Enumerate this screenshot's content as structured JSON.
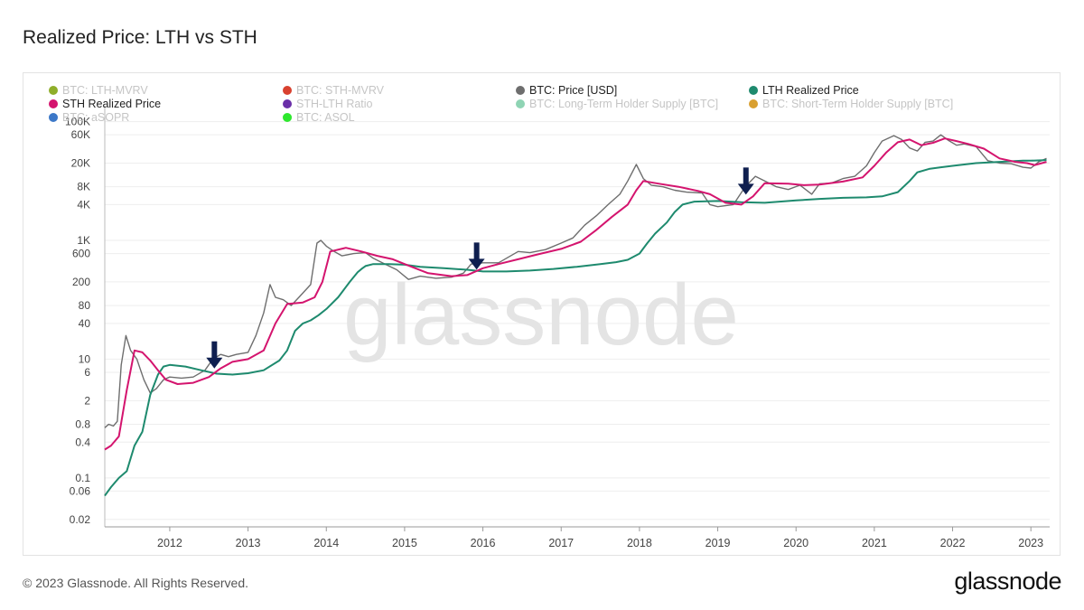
{
  "page": {
    "title": "Realized Price: LTH vs STH",
    "footer": "© 2023 Glassnode. All Rights Reserved.",
    "brand": "glassnode",
    "watermark": "glassnode"
  },
  "legend": [
    {
      "label": "BTC: LTH-MVRV",
      "color": "#8fae2a",
      "active": false
    },
    {
      "label": "BTC: STH-MVRV",
      "color": "#d9412f",
      "active": false
    },
    {
      "label": "BTC: Price [USD]",
      "color": "#6e6e6e",
      "active": true
    },
    {
      "label": "LTH Realized Price",
      "color": "#1e8a6e",
      "active": true
    },
    {
      "label": "STH Realized Price",
      "color": "#d4146e",
      "active": true
    },
    {
      "label": "STH-LTH Ratio",
      "color": "#6a2fa8",
      "active": false
    },
    {
      "label": "BTC: Long-Term Holder Supply [BTC]",
      "color": "#8fd4b4",
      "active": false
    },
    {
      "label": "BTC: Short-Term Holder Supply [BTC]",
      "color": "#d9a030",
      "active": false
    },
    {
      "label": "BTC: aSOPR",
      "color": "#3c78c8",
      "active": false
    },
    {
      "label": "BTC: ASOL",
      "color": "#2ee82e",
      "active": false
    }
  ],
  "chart_data": {
    "type": "line",
    "title": "Realized Price: LTH vs STH",
    "yscale": "log",
    "ylim": [
      0.015,
      150000
    ],
    "xlim": [
      2011.17,
      2023.24
    ],
    "x_ticks": [
      2012,
      2013,
      2014,
      2015,
      2016,
      2017,
      2018,
      2019,
      2020,
      2021,
      2022,
      2023
    ],
    "x_tick_labels": [
      "2012",
      "2013",
      "2014",
      "2015",
      "2016",
      "2017",
      "2018",
      "2019",
      "2020",
      "2021",
      "2022",
      "2023"
    ],
    "y_ticks": [
      0.02,
      0.06,
      0.1,
      0.4,
      0.8,
      2,
      6,
      10,
      40,
      80,
      200,
      600,
      1000,
      4000,
      8000,
      20000,
      60000,
      100000
    ],
    "y_tick_labels": [
      "0.02",
      "0.06",
      "0.1",
      "0.4",
      "0.8",
      "2",
      "6",
      "10",
      "40",
      "80",
      "200",
      "600",
      "1K",
      "4K",
      "8K",
      "20K",
      "60K",
      "100K"
    ],
    "series": [
      {
        "name": "BTC: Price [USD]",
        "color": "#6e6e6e",
        "x": [
          2011.17,
          2011.22,
          2011.28,
          2011.33,
          2011.38,
          2011.44,
          2011.5,
          2011.58,
          2011.67,
          2011.75,
          2011.83,
          2011.92,
          2012.0,
          2012.15,
          2012.3,
          2012.45,
          2012.55,
          2012.65,
          2012.75,
          2012.85,
          2013.0,
          2013.1,
          2013.2,
          2013.28,
          2013.35,
          2013.45,
          2013.55,
          2013.65,
          2013.8,
          2013.88,
          2013.93,
          2014.0,
          2014.1,
          2014.2,
          2014.35,
          2014.5,
          2014.6,
          2014.75,
          2014.9,
          2015.05,
          2015.2,
          2015.4,
          2015.6,
          2015.75,
          2015.85,
          2016.0,
          2016.2,
          2016.45,
          2016.6,
          2016.8,
          2017.0,
          2017.15,
          2017.3,
          2017.45,
          2017.6,
          2017.75,
          2017.85,
          2017.96,
          2018.05,
          2018.15,
          2018.3,
          2018.45,
          2018.6,
          2018.8,
          2018.9,
          2019.0,
          2019.2,
          2019.35,
          2019.48,
          2019.6,
          2019.75,
          2019.9,
          2020.05,
          2020.2,
          2020.3,
          2020.45,
          2020.6,
          2020.75,
          2020.9,
          2021.0,
          2021.1,
          2021.25,
          2021.35,
          2021.45,
          2021.55,
          2021.65,
          2021.75,
          2021.85,
          2021.95,
          2022.05,
          2022.15,
          2022.3,
          2022.45,
          2022.6,
          2022.75,
          2022.9,
          2023.0,
          2023.1,
          2023.2
        ],
        "values": [
          0.7,
          0.8,
          0.75,
          0.9,
          8,
          25,
          14,
          10,
          4.5,
          2.7,
          3.2,
          4.5,
          5,
          4.8,
          5,
          6.5,
          10,
          12,
          11,
          12,
          13,
          25,
          60,
          180,
          110,
          100,
          80,
          110,
          180,
          900,
          1000,
          800,
          650,
          550,
          600,
          620,
          500,
          400,
          320,
          220,
          250,
          230,
          240,
          280,
          400,
          420,
          420,
          650,
          620,
          700,
          900,
          1100,
          1800,
          2600,
          4000,
          6000,
          10000,
          19000,
          11000,
          8500,
          8000,
          7000,
          6500,
          6300,
          4000,
          3700,
          4000,
          8000,
          12000,
          10000,
          8000,
          7200,
          8500,
          6000,
          9000,
          9200,
          11000,
          12000,
          18000,
          30000,
          47000,
          58000,
          50000,
          36000,
          32000,
          45000,
          47000,
          60000,
          48000,
          40000,
          42000,
          38000,
          22000,
          20000,
          19500,
          17000,
          16500,
          21000,
          24000
        ]
      },
      {
        "name": "LTH Realized Price",
        "color": "#1e8a6e",
        "x": [
          2011.17,
          2011.25,
          2011.35,
          2011.45,
          2011.55,
          2011.65,
          2011.75,
          2011.85,
          2011.92,
          2012.0,
          2012.2,
          2012.4,
          2012.6,
          2012.8,
          2013.0,
          2013.2,
          2013.4,
          2013.5,
          2013.6,
          2013.7,
          2013.8,
          2013.9,
          2014.0,
          2014.15,
          2014.3,
          2014.4,
          2014.45,
          2014.5,
          2014.6,
          2014.8,
          2015.0,
          2015.2,
          2015.5,
          2015.8,
          2016.0,
          2016.3,
          2016.6,
          2016.9,
          2017.2,
          2017.5,
          2017.7,
          2017.85,
          2018.0,
          2018.1,
          2018.2,
          2018.35,
          2018.45,
          2018.55,
          2018.7,
          2019.0,
          2019.3,
          2019.6,
          2020.0,
          2020.3,
          2020.6,
          2020.9,
          2021.1,
          2021.3,
          2021.45,
          2021.55,
          2021.7,
          2021.85,
          2022.0,
          2022.3,
          2022.6,
          2022.9,
          2023.0,
          2023.2
        ],
        "values": [
          0.05,
          0.07,
          0.1,
          0.13,
          0.35,
          0.6,
          2.5,
          5.5,
          7.5,
          8,
          7.5,
          6.5,
          5.7,
          5.5,
          5.8,
          6.5,
          9.5,
          14,
          30,
          40,
          45,
          55,
          70,
          110,
          200,
          290,
          330,
          370,
          400,
          400,
          390,
          360,
          340,
          320,
          300,
          300,
          310,
          330,
          360,
          400,
          430,
          470,
          600,
          900,
          1300,
          2000,
          3000,
          4000,
          4500,
          4600,
          4400,
          4300,
          4700,
          5000,
          5200,
          5300,
          5500,
          6500,
          10000,
          14000,
          16000,
          17000,
          18000,
          20000,
          21000,
          22000,
          22000,
          22500
        ]
      },
      {
        "name": "STH Realized Price",
        "color": "#d4146e",
        "x": [
          2011.17,
          2011.25,
          2011.35,
          2011.45,
          2011.55,
          2011.65,
          2011.75,
          2011.85,
          2011.95,
          2012.1,
          2012.3,
          2012.5,
          2012.65,
          2012.8,
          2013.0,
          2013.2,
          2013.35,
          2013.5,
          2013.7,
          2013.85,
          2013.95,
          2014.05,
          2014.25,
          2014.45,
          2014.65,
          2014.85,
          2015.0,
          2015.3,
          2015.6,
          2015.8,
          2016.0,
          2016.2,
          2016.45,
          2016.7,
          2017.0,
          2017.25,
          2017.45,
          2017.65,
          2017.85,
          2017.96,
          2018.05,
          2018.25,
          2018.5,
          2018.75,
          2018.9,
          2019.1,
          2019.3,
          2019.45,
          2019.6,
          2019.9,
          2020.1,
          2020.3,
          2020.6,
          2020.85,
          2021.0,
          2021.15,
          2021.3,
          2021.45,
          2021.6,
          2021.75,
          2021.9,
          2022.05,
          2022.2,
          2022.4,
          2022.6,
          2022.8,
          2022.95,
          2023.05,
          2023.2
        ],
        "values": [
          0.3,
          0.35,
          0.5,
          3,
          14,
          13,
          9.5,
          6.5,
          4.5,
          3.8,
          4,
          5,
          7,
          9,
          10,
          14,
          40,
          85,
          90,
          110,
          200,
          650,
          750,
          650,
          550,
          480,
          400,
          280,
          250,
          260,
          340,
          400,
          480,
          580,
          720,
          950,
          1500,
          2500,
          4000,
          7000,
          10000,
          9000,
          8000,
          6800,
          6000,
          4300,
          4000,
          5500,
          9200,
          9000,
          8500,
          8700,
          9800,
          11500,
          18000,
          30000,
          45000,
          50000,
          40000,
          44000,
          52000,
          47000,
          42000,
          35000,
          24000,
          21000,
          20000,
          18500,
          21000
        ]
      }
    ],
    "annotations": [
      {
        "type": "arrow-down",
        "x": 2012.57,
        "y": 6.5
      },
      {
        "type": "arrow-down",
        "x": 2015.92,
        "y": 300
      },
      {
        "type": "arrow-down",
        "x": 2019.36,
        "y": 5500
      }
    ]
  }
}
